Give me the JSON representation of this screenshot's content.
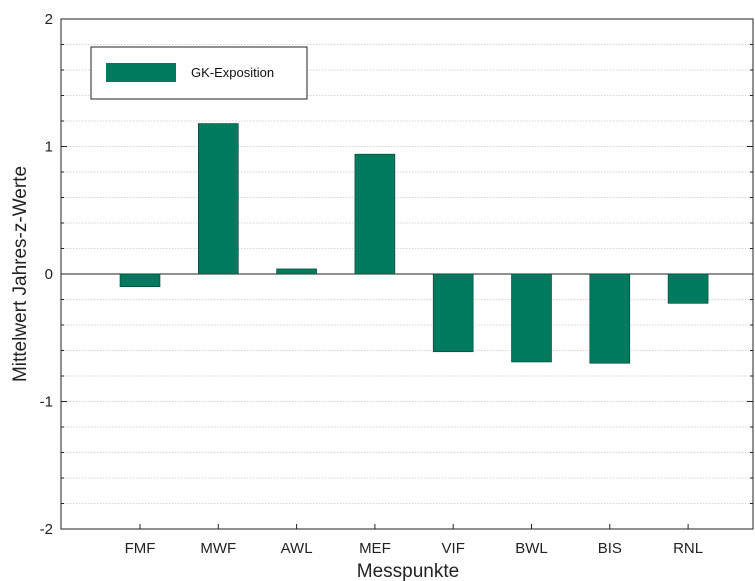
{
  "chart_data": {
    "type": "bar",
    "title": "",
    "xlabel": "Messpunkte",
    "ylabel": "Mittelwert Jahres-z-Werte",
    "categories": [
      "FMF",
      "MWF",
      "AWL",
      "MEF",
      "VIF",
      "BWL",
      "BIS",
      "RNL"
    ],
    "series": [
      {
        "name": "GK-Exposition",
        "color": "#007a5e",
        "values": [
          -0.1,
          1.18,
          0.04,
          0.94,
          -0.61,
          -0.69,
          -0.7,
          -0.23
        ]
      }
    ],
    "ylim": [
      -2,
      2
    ],
    "yticks": [
      "-2",
      "-1",
      "0",
      "1",
      "2"
    ],
    "grid": true,
    "legend": "top-left"
  }
}
